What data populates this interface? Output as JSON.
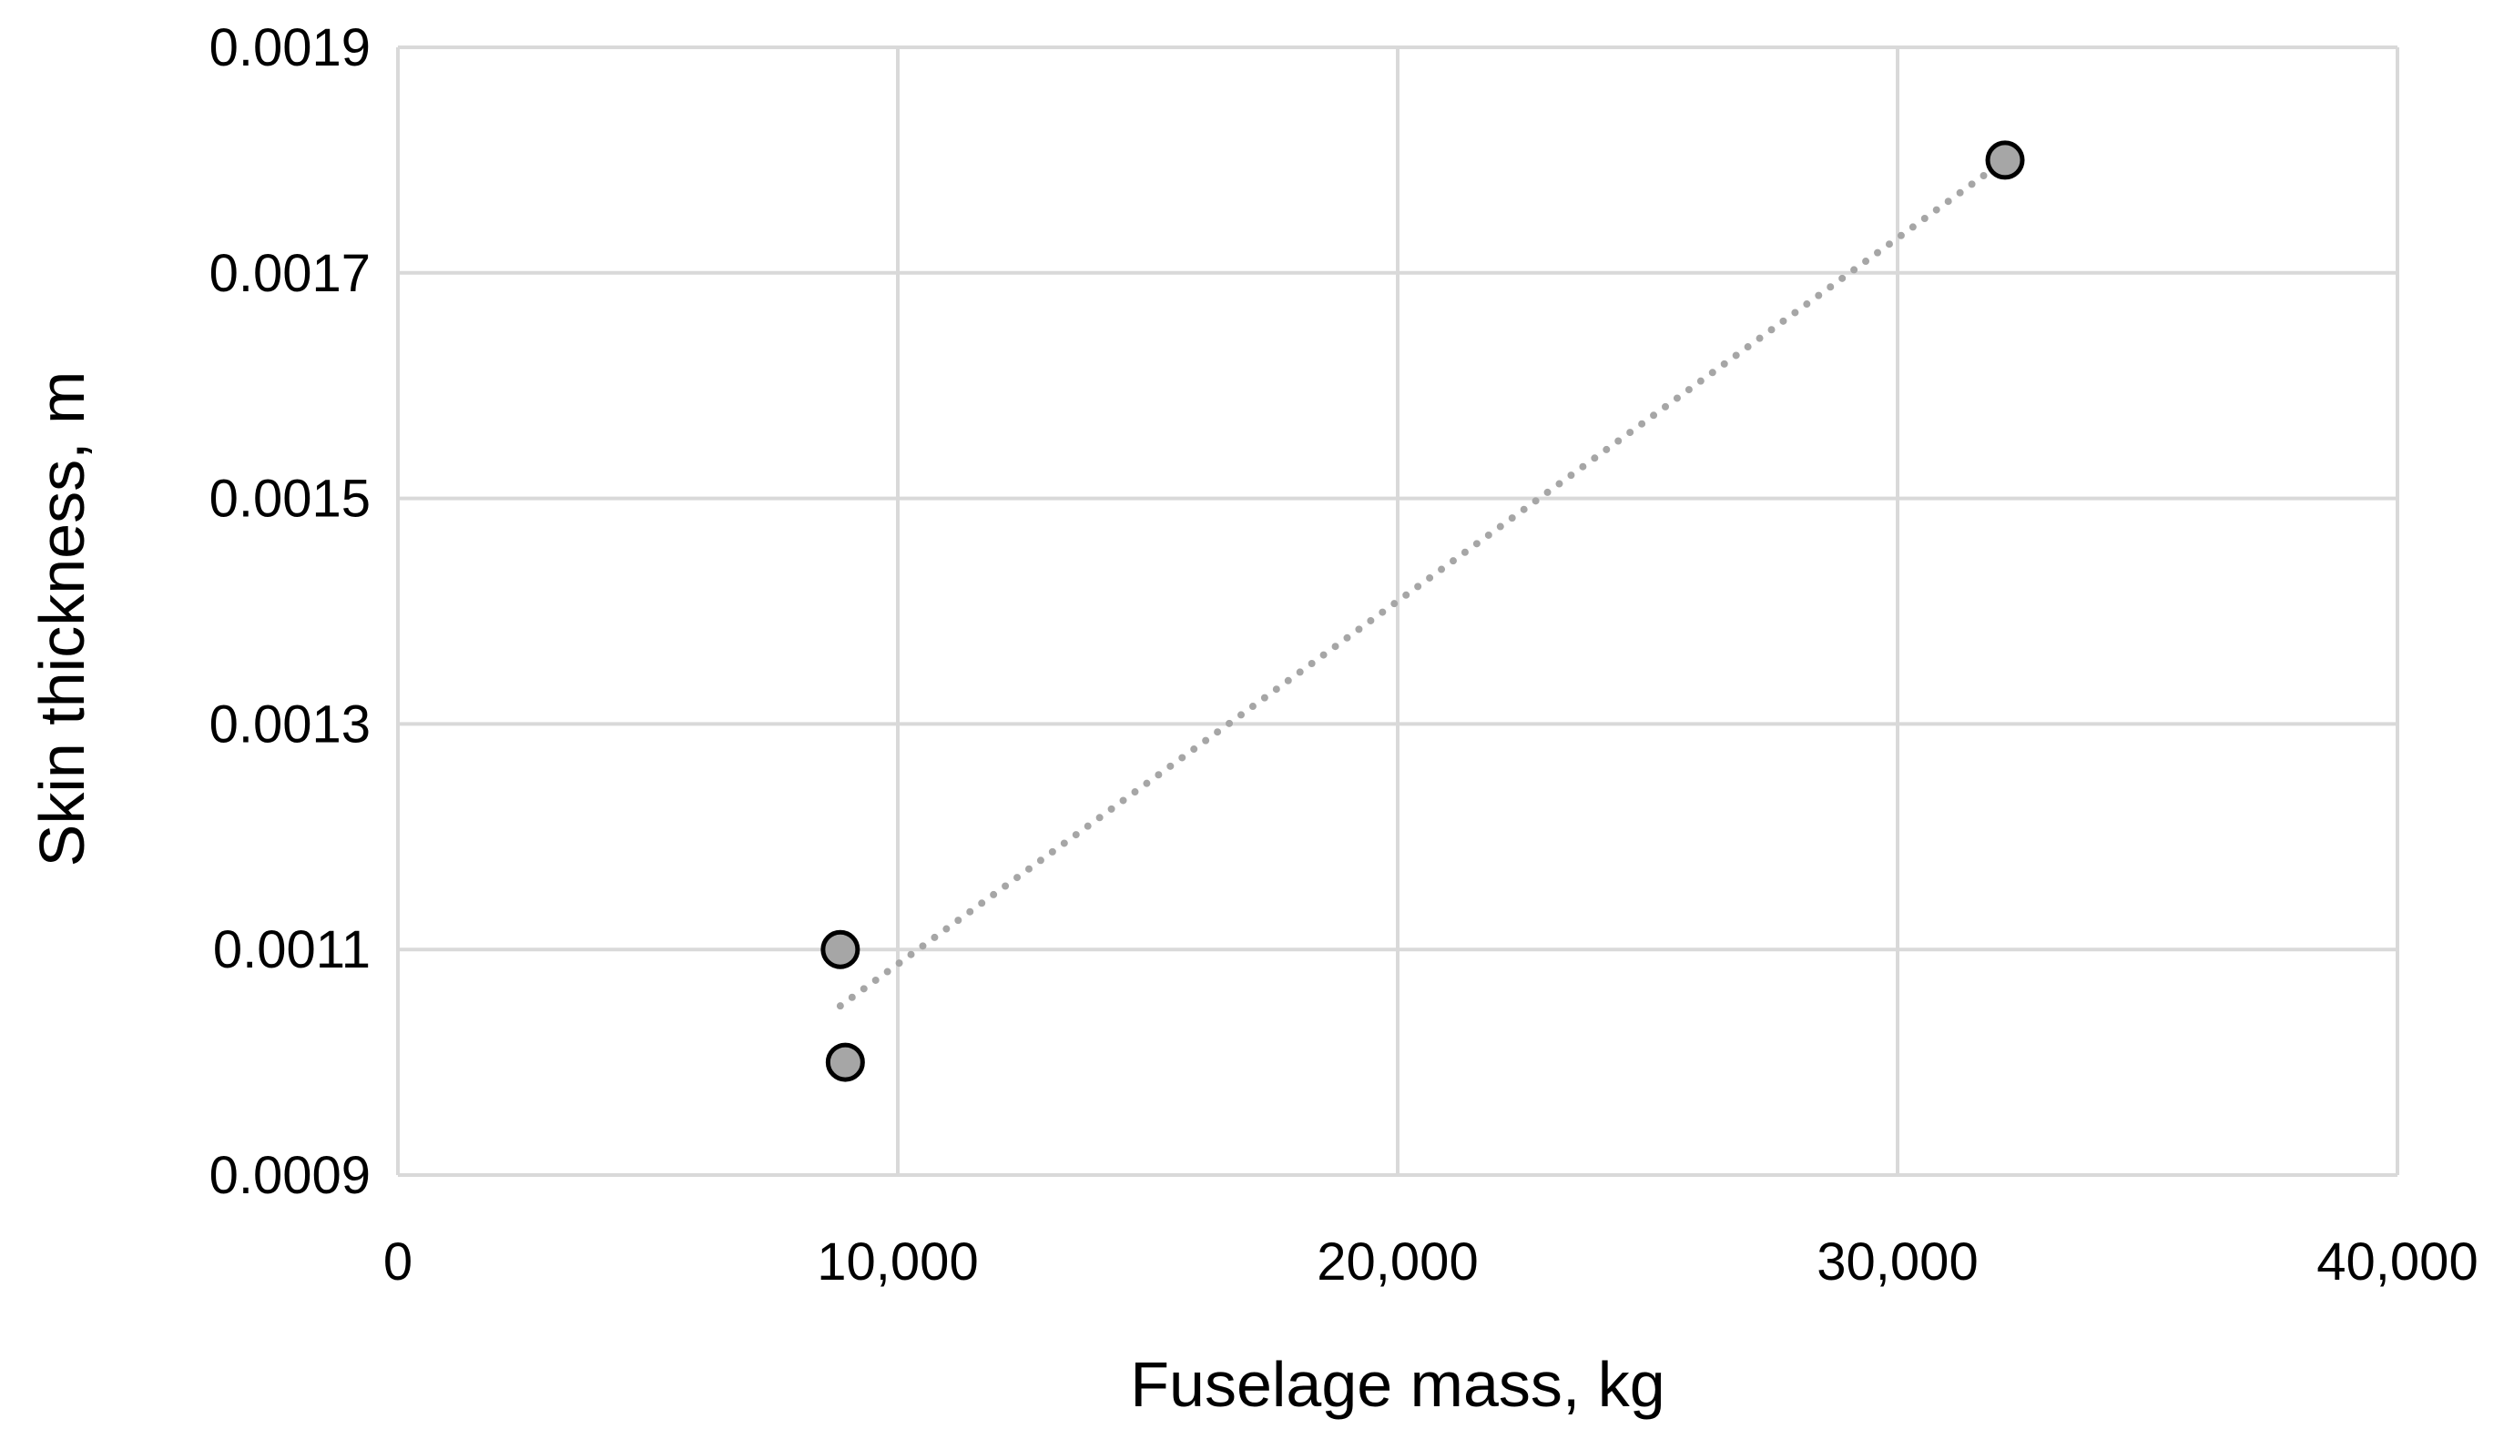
{
  "chart_data": {
    "type": "scatter",
    "xlabel": "Fuselage mass, kg",
    "ylabel": "Skin thickness, m",
    "xlim": [
      0,
      40000
    ],
    "ylim": [
      0.0009,
      0.0019
    ],
    "x_ticks": [
      0,
      10000,
      20000,
      30000,
      40000
    ],
    "x_tick_labels": [
      "0",
      "10,000",
      "20,000",
      "30,000",
      "40,000"
    ],
    "y_ticks": [
      0.0009,
      0.0011,
      0.0013,
      0.0015,
      0.0017,
      0.0019
    ],
    "y_tick_labels": [
      "0.0009",
      "0.0011",
      "0.0013",
      "0.0015",
      "0.0017",
      "0.0019"
    ],
    "grid": true,
    "series": [
      {
        "points": [
          {
            "x": 8850,
            "y": 0.0011
          },
          {
            "x": 8950,
            "y": 0.001
          },
          {
            "x": 32150,
            "y": 0.0018
          }
        ],
        "marker_color": "#a6a6a6",
        "marker_edge_color": "#000000"
      }
    ],
    "trendline": {
      "style": "dotted",
      "color": "#a6a6a6",
      "from": {
        "x": 8850,
        "y": 0.00105
      },
      "to": {
        "x": 32150,
        "y": 0.0018
      }
    },
    "colors": {
      "grid": "#d9d9d9",
      "background": "#ffffff"
    }
  }
}
